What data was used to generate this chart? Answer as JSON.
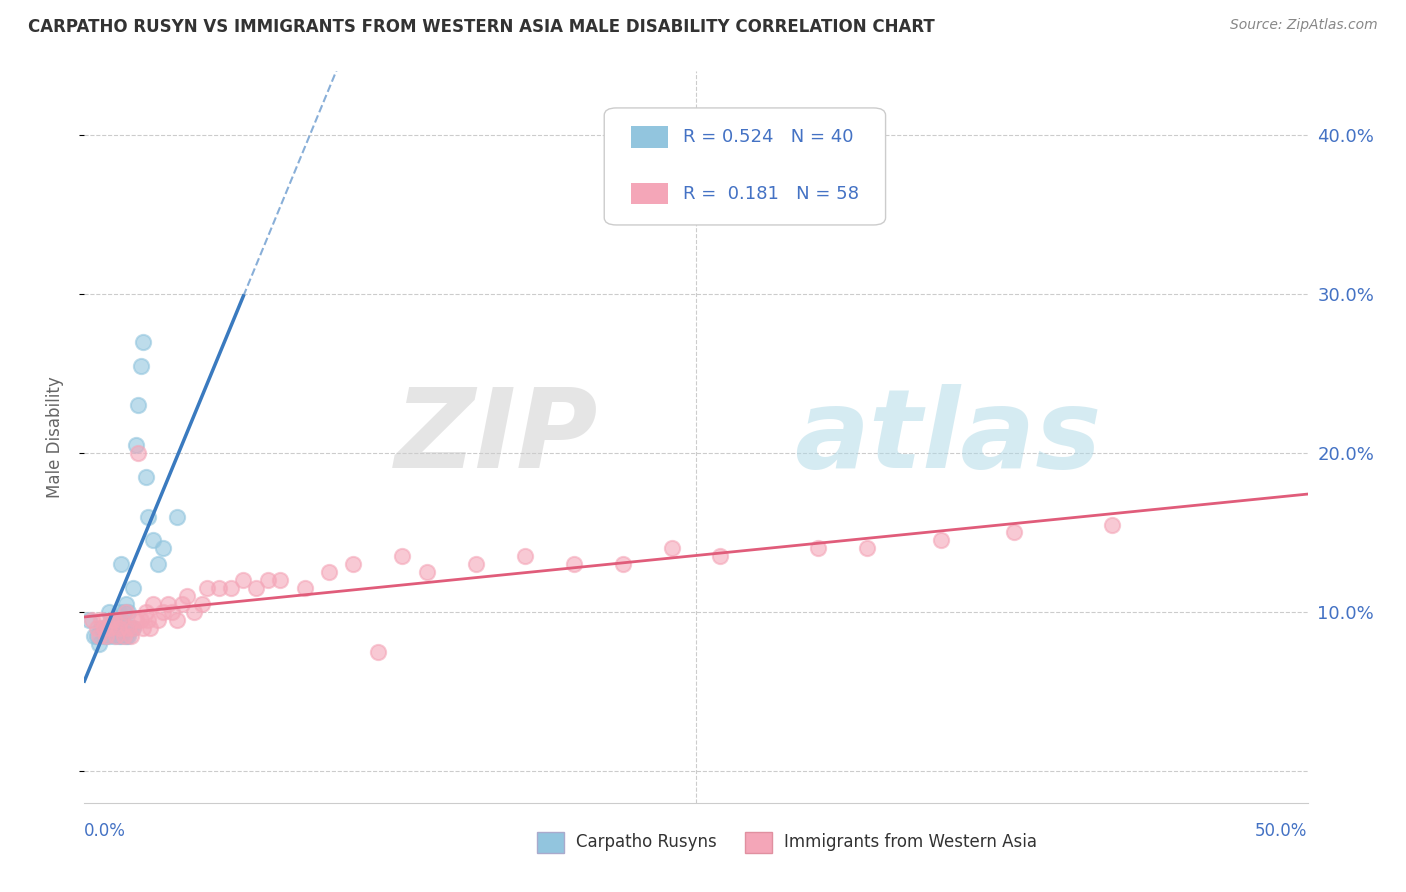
{
  "title": "CARPATHO RUSYN VS IMMIGRANTS FROM WESTERN ASIA MALE DISABILITY CORRELATION CHART",
  "source": "Source: ZipAtlas.com",
  "ylabel": "Male Disability",
  "xlim": [
    0.0,
    0.5
  ],
  "ylim": [
    -0.02,
    0.44
  ],
  "yticks": [
    0.0,
    0.1,
    0.2,
    0.3,
    0.4
  ],
  "ytick_labels": [
    "",
    "10.0%",
    "20.0%",
    "30.0%",
    "40.0%"
  ],
  "legend1_R": "0.524",
  "legend1_N": "40",
  "legend2_R": "0.181",
  "legend2_N": "58",
  "color_blue": "#92c5de",
  "color_pink": "#f4a6b8",
  "color_blue_line": "#3a7abf",
  "color_pink_line": "#e05c7a",
  "blue_scatter_x": [
    0.002,
    0.004,
    0.005,
    0.006,
    0.007,
    0.008,
    0.009,
    0.009,
    0.01,
    0.01,
    0.011,
    0.011,
    0.012,
    0.012,
    0.013,
    0.013,
    0.014,
    0.014,
    0.015,
    0.015,
    0.015,
    0.016,
    0.016,
    0.017,
    0.017,
    0.018,
    0.018,
    0.019,
    0.02,
    0.02,
    0.021,
    0.022,
    0.023,
    0.024,
    0.025,
    0.026,
    0.028,
    0.03,
    0.032,
    0.038
  ],
  "blue_scatter_y": [
    0.095,
    0.085,
    0.085,
    0.08,
    0.09,
    0.085,
    0.085,
    0.09,
    0.085,
    0.1,
    0.09,
    0.095,
    0.085,
    0.095,
    0.09,
    0.095,
    0.085,
    0.1,
    0.085,
    0.095,
    0.13,
    0.09,
    0.1,
    0.085,
    0.105,
    0.085,
    0.1,
    0.09,
    0.09,
    0.115,
    0.205,
    0.23,
    0.255,
    0.27,
    0.185,
    0.16,
    0.145,
    0.13,
    0.14,
    0.16
  ],
  "pink_scatter_x": [
    0.003,
    0.005,
    0.006,
    0.007,
    0.008,
    0.009,
    0.01,
    0.011,
    0.012,
    0.013,
    0.014,
    0.015,
    0.016,
    0.017,
    0.018,
    0.019,
    0.02,
    0.021,
    0.022,
    0.023,
    0.024,
    0.025,
    0.026,
    0.027,
    0.028,
    0.03,
    0.032,
    0.034,
    0.036,
    0.038,
    0.04,
    0.042,
    0.045,
    0.048,
    0.05,
    0.055,
    0.06,
    0.065,
    0.07,
    0.075,
    0.08,
    0.09,
    0.1,
    0.11,
    0.12,
    0.13,
    0.14,
    0.16,
    0.18,
    0.2,
    0.22,
    0.24,
    0.26,
    0.3,
    0.32,
    0.35,
    0.38,
    0.42
  ],
  "pink_scatter_y": [
    0.095,
    0.09,
    0.085,
    0.095,
    0.09,
    0.085,
    0.09,
    0.095,
    0.095,
    0.085,
    0.09,
    0.095,
    0.085,
    0.1,
    0.09,
    0.085,
    0.09,
    0.095,
    0.2,
    0.095,
    0.09,
    0.1,
    0.095,
    0.09,
    0.105,
    0.095,
    0.1,
    0.105,
    0.1,
    0.095,
    0.105,
    0.11,
    0.1,
    0.105,
    0.115,
    0.115,
    0.115,
    0.12,
    0.115,
    0.12,
    0.12,
    0.115,
    0.125,
    0.13,
    0.075,
    0.135,
    0.125,
    0.13,
    0.135,
    0.13,
    0.13,
    0.14,
    0.135,
    0.14,
    0.14,
    0.145,
    0.15,
    0.155
  ]
}
